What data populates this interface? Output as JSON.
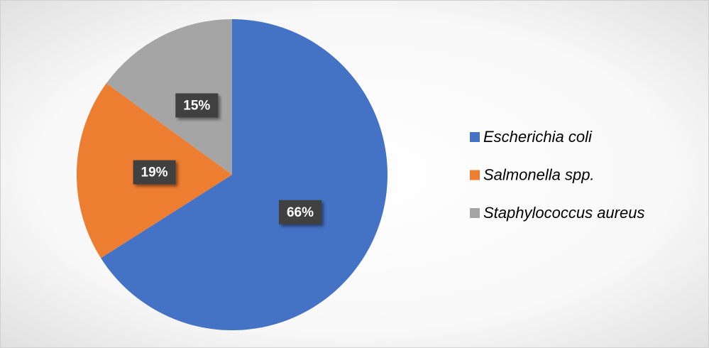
{
  "chart_data": {
    "type": "pie",
    "categories": [
      "Escherichia coli",
      "Salmonella spp.",
      "Staphylococcus aureus"
    ],
    "values": [
      66,
      19,
      15
    ],
    "value_labels": [
      "66%",
      "19%",
      "15%"
    ],
    "colors": [
      "#4472c4",
      "#ed7d31",
      "#a5a5a5"
    ],
    "legend": "right"
  }
}
